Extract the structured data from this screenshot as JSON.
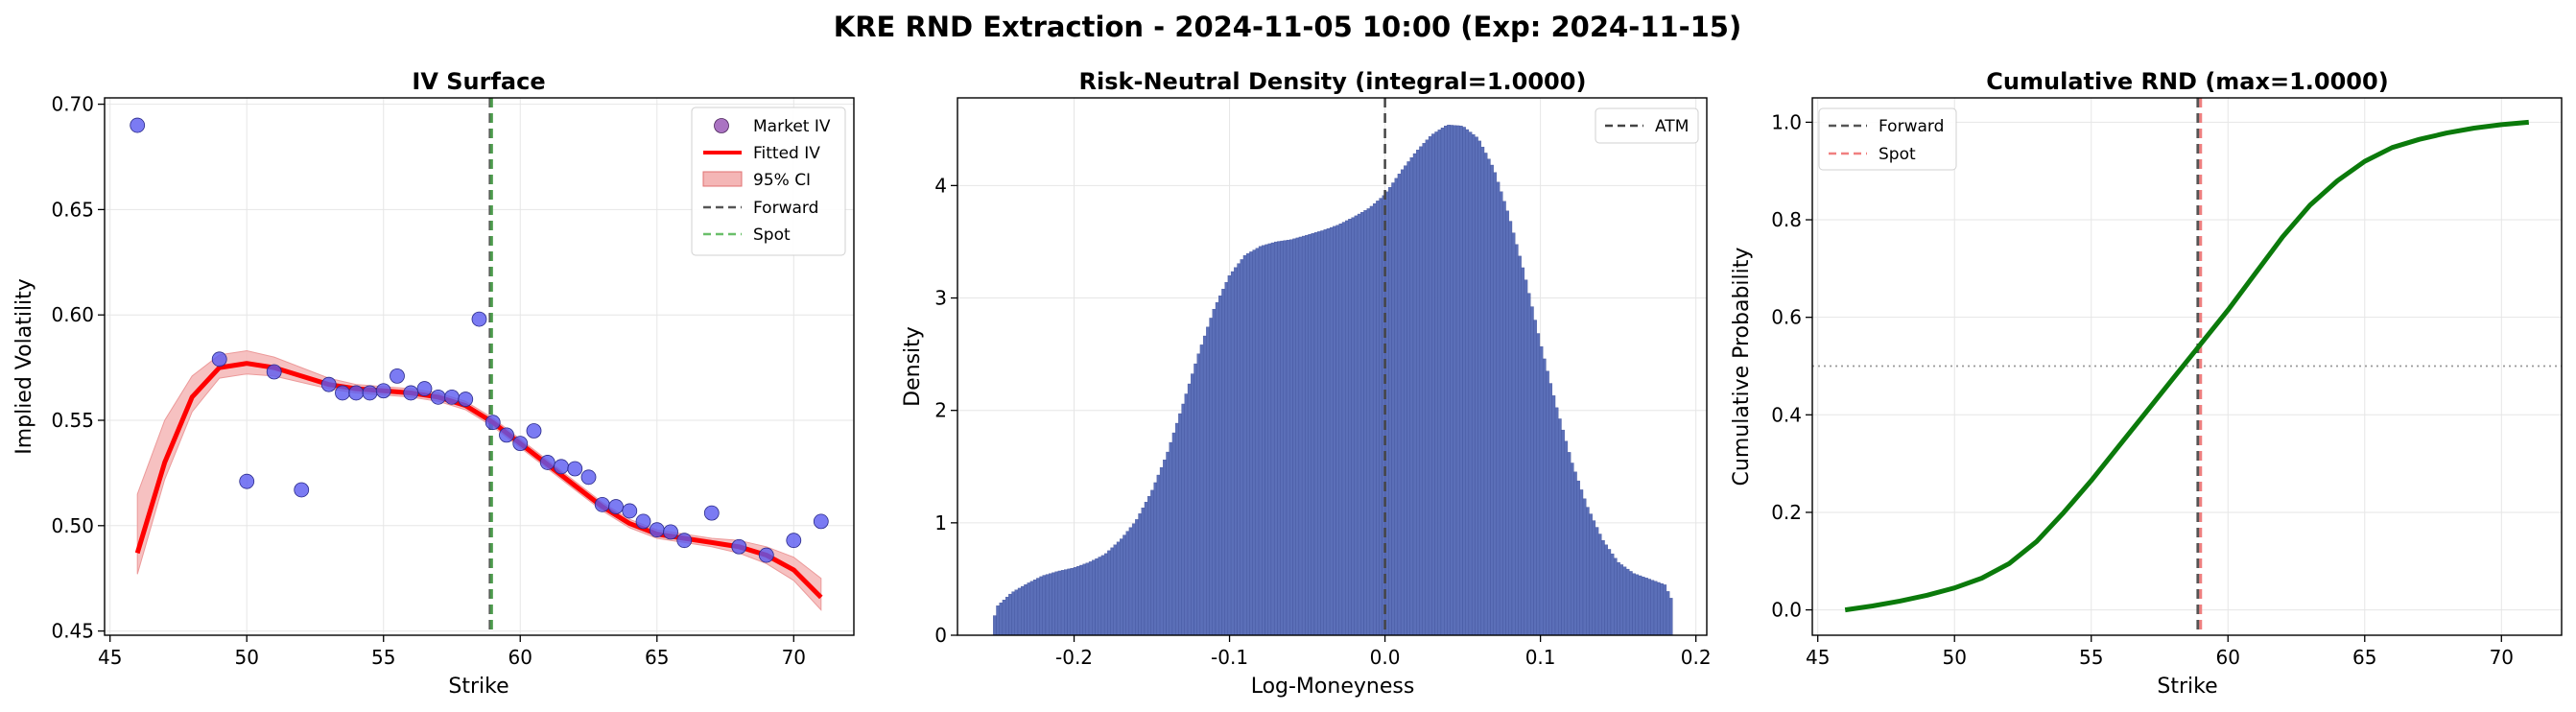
{
  "figure": {
    "title": "KRE RND Extraction - 2024-11-05 10:00 (Exp: 2024-11-15)"
  },
  "colors": {
    "market_iv": "#5a5af0",
    "fitted_iv": "#ff0000",
    "ci_fill": "#f4b6b6",
    "forward": "#555555",
    "spot_panel1": "#4c9a4c",
    "spot_panel3": "#f08080",
    "density_bar": "#5b6fb8",
    "cdf_line": "#0b7a0b",
    "grid": "#e6e6e6"
  },
  "chart_data": [
    {
      "type": "scatter",
      "title": "IV Surface",
      "xlabel": "Strike",
      "ylabel": "Implied Volatility",
      "xlim": [
        44.8,
        72.2
      ],
      "ylim": [
        0.448,
        0.703
      ],
      "xticks": [
        "45",
        "50",
        "55",
        "60",
        "65",
        "70"
      ],
      "yticks": [
        "0.45",
        "0.50",
        "0.55",
        "0.60",
        "0.65",
        "0.70"
      ],
      "grid": true,
      "legend_position": "top-right",
      "legend": [
        "Market IV",
        "Fitted IV",
        "95% CI",
        "Forward",
        "Spot"
      ],
      "market_iv": {
        "x": [
          46,
          49,
          50,
          51,
          52,
          53,
          53.5,
          54,
          54.5,
          55,
          55.5,
          56,
          56.5,
          57,
          57.5,
          58,
          58.5,
          59,
          59.5,
          60,
          60.5,
          61,
          61.5,
          62,
          62.5,
          63,
          63.5,
          64,
          64.5,
          65,
          65.5,
          66,
          67,
          68,
          69,
          70,
          71
        ],
        "y": [
          0.69,
          0.579,
          0.521,
          0.573,
          0.517,
          0.567,
          0.563,
          0.563,
          0.563,
          0.564,
          0.571,
          0.563,
          0.565,
          0.561,
          0.561,
          0.56,
          0.598,
          0.549,
          0.543,
          0.539,
          0.545,
          0.53,
          0.528,
          0.527,
          0.523,
          0.51,
          0.509,
          0.507,
          0.502,
          0.498,
          0.497,
          0.493,
          0.506,
          0.49,
          0.486,
          0.493,
          0.502
        ]
      },
      "fitted_iv": {
        "x": [
          46,
          47,
          48,
          49,
          50,
          51,
          52,
          53,
          54,
          55,
          56,
          57,
          58,
          59,
          60,
          61,
          62,
          63,
          64,
          65,
          66,
          67,
          68,
          69,
          70,
          71
        ],
        "y": [
          0.487,
          0.53,
          0.561,
          0.575,
          0.577,
          0.575,
          0.571,
          0.567,
          0.565,
          0.564,
          0.563,
          0.561,
          0.557,
          0.549,
          0.539,
          0.529,
          0.519,
          0.509,
          0.501,
          0.496,
          0.494,
          0.492,
          0.49,
          0.486,
          0.479,
          0.466
        ],
        "ci_lower": [
          0.477,
          0.522,
          0.554,
          0.57,
          0.572,
          0.571,
          0.568,
          0.565,
          0.563,
          0.562,
          0.561,
          0.559,
          0.555,
          0.547,
          0.537,
          0.527,
          0.517,
          0.507,
          0.499,
          0.494,
          0.492,
          0.49,
          0.487,
          0.482,
          0.474,
          0.46
        ],
        "ci_upper": [
          0.515,
          0.55,
          0.571,
          0.581,
          0.583,
          0.58,
          0.575,
          0.57,
          0.567,
          0.566,
          0.565,
          0.563,
          0.559,
          0.551,
          0.541,
          0.531,
          0.521,
          0.511,
          0.503,
          0.498,
          0.496,
          0.494,
          0.493,
          0.49,
          0.485,
          0.475
        ]
      },
      "forward": 58.9,
      "spot": 58.95
    },
    {
      "type": "bar",
      "title": "Risk-Neutral Density (integral=1.0000)",
      "xlabel": "Log-Moneyness",
      "ylabel": "Density",
      "xlim": [
        -0.275,
        0.207
      ],
      "ylim": [
        0,
        4.78
      ],
      "xticks": [
        "-0.2",
        "-0.1",
        "0.0",
        "0.1",
        "0.2"
      ],
      "yticks": [
        "0",
        "1",
        "2",
        "3",
        "4"
      ],
      "grid": true,
      "legend_position": "top-right",
      "legend": [
        "ATM"
      ],
      "atm": 0.0,
      "density": {
        "x": [
          -0.252,
          -0.25,
          -0.24,
          -0.23,
          -0.22,
          -0.21,
          -0.2,
          -0.19,
          -0.18,
          -0.17,
          -0.16,
          -0.15,
          -0.14,
          -0.13,
          -0.12,
          -0.11,
          -0.1,
          -0.09,
          -0.08,
          -0.07,
          -0.06,
          -0.05,
          -0.04,
          -0.03,
          -0.02,
          -0.01,
          0.0,
          0.01,
          0.02,
          0.03,
          0.04,
          0.05,
          0.06,
          0.07,
          0.08,
          0.09,
          0.1,
          0.11,
          0.12,
          0.13,
          0.14,
          0.15,
          0.16,
          0.17,
          0.18,
          0.185
        ],
        "y": [
          0.1,
          0.25,
          0.38,
          0.46,
          0.53,
          0.57,
          0.6,
          0.65,
          0.72,
          0.85,
          1.02,
          1.28,
          1.62,
          2.05,
          2.5,
          2.9,
          3.2,
          3.38,
          3.46,
          3.5,
          3.52,
          3.56,
          3.6,
          3.65,
          3.72,
          3.8,
          3.92,
          4.12,
          4.3,
          4.45,
          4.54,
          4.53,
          4.42,
          4.15,
          3.72,
          3.2,
          2.6,
          2.05,
          1.55,
          1.15,
          0.85,
          0.65,
          0.55,
          0.5,
          0.45,
          0.3
        ]
      }
    },
    {
      "type": "line",
      "title": "Cumulative RND (max=1.0000)",
      "xlabel": "Strike",
      "ylabel": "Cumulative Probability",
      "xlim": [
        44.8,
        72.2
      ],
      "ylim": [
        -0.052,
        1.05
      ],
      "xticks": [
        "45",
        "50",
        "55",
        "60",
        "65",
        "70"
      ],
      "yticks": [
        "0.0",
        "0.2",
        "0.4",
        "0.6",
        "0.8",
        "1.0"
      ],
      "grid": true,
      "legend_position": "top-left",
      "legend": [
        "Forward",
        "Spot"
      ],
      "reference_line": 0.5,
      "forward": 58.9,
      "spot": 59.0,
      "cdf": {
        "x": [
          46,
          47,
          48,
          49,
          50,
          51,
          52,
          53,
          54,
          55,
          56,
          57,
          58,
          59,
          60,
          61,
          62,
          63,
          64,
          65,
          66,
          67,
          68,
          69,
          70,
          71
        ],
        "y": [
          0.0,
          0.008,
          0.018,
          0.03,
          0.045,
          0.065,
          0.095,
          0.14,
          0.2,
          0.265,
          0.335,
          0.405,
          0.475,
          0.545,
          0.615,
          0.69,
          0.765,
          0.83,
          0.88,
          0.92,
          0.948,
          0.965,
          0.978,
          0.988,
          0.995,
          1.0
        ]
      }
    }
  ]
}
